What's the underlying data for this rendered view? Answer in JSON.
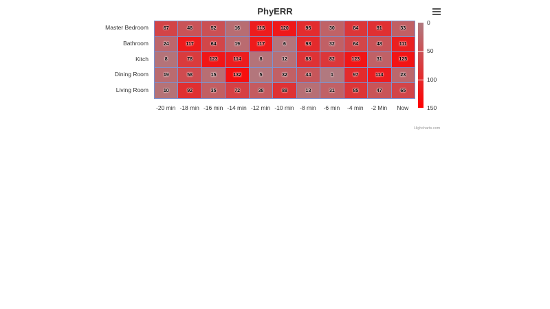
{
  "header": {
    "title": "PhyERR",
    "menu_icon": "hamburger-menu-icon"
  },
  "credit": "Highcharts.com",
  "colors": {
    "min": "#b07a80",
    "max": "#ff0000",
    "cell_border": "#7b94d4"
  },
  "chart_data": {
    "type": "heatmap",
    "title": "PhyERR",
    "xlabel": "",
    "ylabel": "",
    "x_categories": [
      "-20 min",
      "-18 min",
      "-16 min",
      "-14 min",
      "-12 min",
      "-10 min",
      "-8 min",
      "-6 min",
      "-4 min",
      "-2 Min",
      "Now"
    ],
    "y_categories": [
      "Master Bedroom",
      "Bathroom",
      "Kitch",
      "Dining Room",
      "Living Room"
    ],
    "values": [
      [
        67,
        48,
        52,
        16,
        115,
        120,
        96,
        30,
        84,
        91,
        33
      ],
      [
        24,
        117,
        64,
        19,
        117,
        6,
        98,
        32,
        64,
        48,
        111
      ],
      [
        8,
        78,
        123,
        114,
        8,
        12,
        88,
        82,
        123,
        31,
        125
      ],
      [
        19,
        58,
        15,
        132,
        5,
        32,
        44,
        1,
        97,
        114,
        23
      ],
      [
        10,
        92,
        35,
        72,
        38,
        88,
        13,
        31,
        85,
        47,
        65
      ]
    ],
    "colorAxis": {
      "min": 0,
      "max": 150,
      "ticks": [
        0,
        50,
        100,
        150
      ],
      "minColor": "#b07a80",
      "maxColor": "#ff0000"
    },
    "legend_position": "right"
  }
}
